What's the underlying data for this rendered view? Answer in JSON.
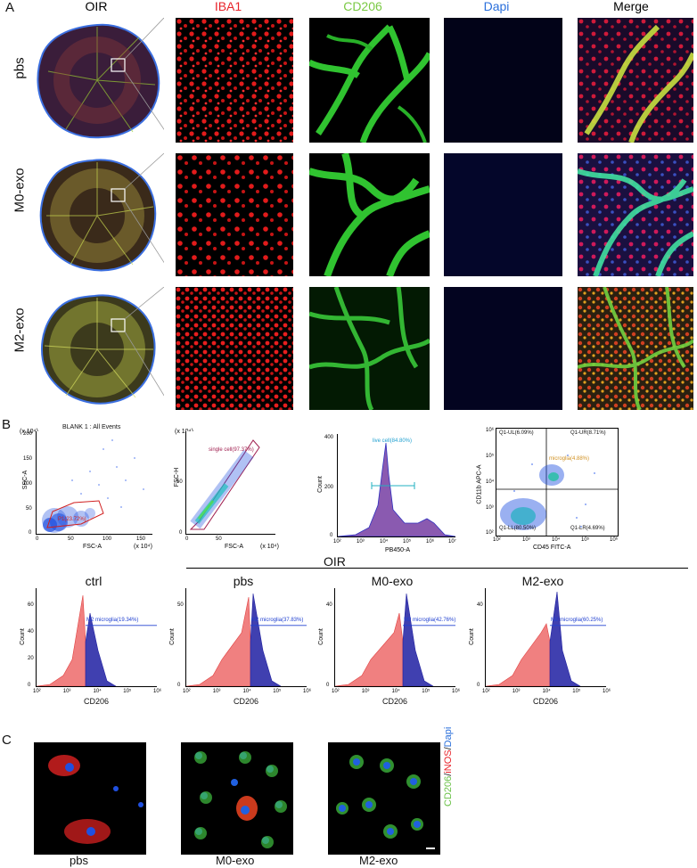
{
  "panelA": {
    "letter": "A",
    "columns": [
      {
        "label": "OIR",
        "color": "#000000"
      },
      {
        "label": "IBA1",
        "color": "#e8232a"
      },
      {
        "label": "CD206",
        "color": "#7ac943"
      },
      {
        "label": "Dapi",
        "color": "#2a6fdb"
      },
      {
        "label": "Merge",
        "color": "#000000"
      }
    ],
    "rows": [
      "pbs",
      "M0-exo",
      "M2-exo"
    ]
  },
  "panelB": {
    "letter": "B",
    "scatter1": {
      "title": "BLANK 1 : All Events",
      "ylabel": "SSC-A",
      "xlabel": "FSC-A",
      "ymult": "(x 10⁴)",
      "xmult": "(x 10⁴)",
      "yticks": [
        "0",
        "50",
        "100",
        "150",
        "200"
      ],
      "xticks": [
        "0",
        "50",
        "100",
        "150"
      ],
      "gate": "P1(23.72%)"
    },
    "scatter2": {
      "ylabel": "FSC-H",
      "xlabel": "FSC-A",
      "ymult": "(x 10⁴)",
      "xmult": "(x 10⁴)",
      "yticks": [
        "0",
        "50"
      ],
      "xticks": [
        "0",
        "50"
      ],
      "gate": "single cell(97.37%)"
    },
    "live": {
      "ylabel": "Count",
      "xlabel": "PB450-A",
      "yticks": [
        "0",
        "200",
        "400"
      ],
      "xticks": [
        "10²",
        "10³",
        "10⁴",
        "10⁵",
        "10⁶",
        "10⁷"
      ],
      "gate": "live cell(84.80%)"
    },
    "quad": {
      "ylabel": "CD11b  APC-A",
      "xlabel": "CD45  FITC-A",
      "yticks": [
        "10²",
        "10³",
        "10⁴",
        "10⁵",
        "10⁶"
      ],
      "xticks": [
        "10²",
        "10³",
        "10⁴",
        "10⁵",
        "10⁶"
      ],
      "ul": "Q1-UL(6.09%)",
      "ur": "Q1-UR(8.71%)",
      "ll": "Q1-LL(80.50%)",
      "lr": "Q1-LR(4.69%)",
      "gate": "microglia(4.88%)"
    },
    "oir_label": "OIR",
    "histograms": [
      {
        "title": "ctrl",
        "gate": "M2 microglia(19.34%)",
        "xlabel": "CD206",
        "yticks": [
          "0",
          "20",
          "40",
          "60"
        ]
      },
      {
        "title": "pbs",
        "gate": "M2 microglia(37.83%)",
        "xlabel": "CD206",
        "yticks": [
          "0",
          "50"
        ]
      },
      {
        "title": "M0-exo",
        "gate": "M2 microglia(42.76%)",
        "xlabel": "CD206",
        "yticks": [
          "0",
          "40"
        ]
      },
      {
        "title": "M2-exo",
        "gate": "M2 microglia(60.25%)",
        "xlabel": "CD206",
        "yticks": [
          "0",
          "40"
        ]
      }
    ],
    "hist_ylabel": "Count",
    "hist_xticks": [
      "10²",
      "10³",
      "10⁴",
      "10⁵",
      "10⁶"
    ]
  },
  "panelC": {
    "letter": "C",
    "labels": [
      "pbs",
      "M0-exo",
      "M2-exo"
    ],
    "side_label": {
      "cd206": "CD206",
      "sep1": "/",
      "inos": "iNOS",
      "sep2": "/",
      "dapi": "Dapi"
    },
    "colors": {
      "green": "#6cc24a",
      "red": "#e8232a",
      "blue": "#2a6fdb"
    }
  }
}
